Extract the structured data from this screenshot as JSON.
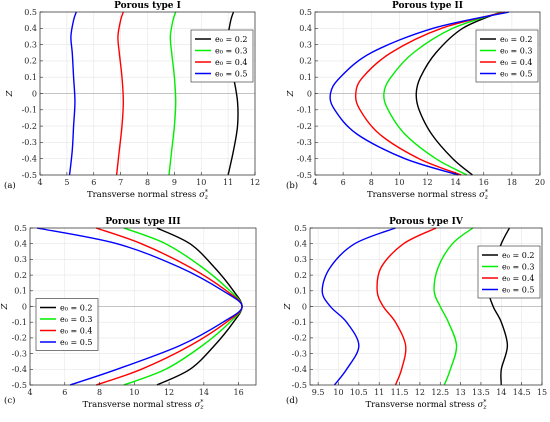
{
  "figure": {
    "background": "#ffffff",
    "series_colors": [
      "#000000",
      "#00ee00",
      "#ff0000",
      "#0000ff"
    ]
  },
  "chart_data": [
    {
      "type": "line",
      "panel_label": "(a)",
      "title": "Porous type I",
      "xlabel": "Transverse normal stress σ_z^*",
      "ylabel": "Z",
      "xlim": [
        4,
        12
      ],
      "ylim": [
        -0.5,
        0.5
      ],
      "xticks": [
        4,
        5,
        6,
        7,
        8,
        9,
        10,
        11,
        12
      ],
      "yticks": [
        -0.5,
        -0.4,
        -0.3,
        -0.2,
        -0.1,
        0,
        0.1,
        0.2,
        0.3,
        0.4,
        0.5
      ],
      "grid": true,
      "legend_position": "top-right",
      "series": [
        {
          "name": "e₀ = 0.2",
          "color": "#000000",
          "x": [
            11.0,
            11.2,
            11.35,
            11.35,
            11.2,
            11.0,
            11.0,
            11.1,
            11.2
          ],
          "y": [
            -0.5,
            -0.35,
            -0.2,
            -0.05,
            0.1,
            0.25,
            0.35,
            0.45,
            0.5
          ]
        },
        {
          "name": "e₀ = 0.3",
          "color": "#00ee00",
          "x": [
            8.8,
            8.9,
            9.0,
            9.05,
            9.0,
            8.9,
            8.85,
            8.95,
            9.05
          ],
          "y": [
            -0.5,
            -0.35,
            -0.2,
            -0.05,
            0.1,
            0.25,
            0.35,
            0.45,
            0.5
          ]
        },
        {
          "name": "e₀ = 0.4",
          "color": "#ff0000",
          "x": [
            6.85,
            6.95,
            7.05,
            7.1,
            7.05,
            6.95,
            6.9,
            7.0,
            7.1
          ],
          "y": [
            -0.5,
            -0.35,
            -0.2,
            -0.05,
            0.1,
            0.25,
            0.35,
            0.45,
            0.5
          ]
        },
        {
          "name": "e₀ = 0.5",
          "color": "#0000ff",
          "x": [
            5.1,
            5.2,
            5.25,
            5.3,
            5.25,
            5.2,
            5.15,
            5.25,
            5.35
          ],
          "y": [
            -0.5,
            -0.35,
            -0.2,
            -0.05,
            0.1,
            0.25,
            0.35,
            0.45,
            0.5
          ]
        }
      ]
    },
    {
      "type": "line",
      "panel_label": "(b)",
      "title": "Porous type II",
      "xlabel": "Transverse normal stress σ_z^*",
      "ylabel": "Z",
      "xlim": [
        4,
        20
      ],
      "ylim": [
        -0.5,
        0.5
      ],
      "xticks": [
        4,
        6,
        8,
        10,
        12,
        14,
        16,
        18,
        20
      ],
      "yticks": [
        -0.5,
        -0.4,
        -0.3,
        -0.2,
        -0.1,
        0,
        0.1,
        0.2,
        0.3,
        0.4,
        0.5
      ],
      "grid": true,
      "legend_position": "top-right",
      "series": [
        {
          "name": "e₀ = 0.2",
          "color": "#000000",
          "x": [
            15.2,
            13.8,
            12.3,
            11.4,
            11.2,
            11.5,
            12.6,
            14.5,
            17.2
          ],
          "y": [
            -0.5,
            -0.4,
            -0.25,
            -0.1,
            0.0,
            0.1,
            0.25,
            0.4,
            0.5
          ]
        },
        {
          "name": "e₀ = 0.3",
          "color": "#00ee00",
          "x": [
            14.8,
            12.6,
            10.4,
            9.2,
            8.9,
            9.4,
            11.0,
            13.8,
            17.3
          ],
          "y": [
            -0.5,
            -0.4,
            -0.25,
            -0.1,
            0.0,
            0.1,
            0.25,
            0.4,
            0.5
          ]
        },
        {
          "name": "e₀ = 0.4",
          "color": "#ff0000",
          "x": [
            14.4,
            11.4,
            8.6,
            7.2,
            6.9,
            7.4,
            9.4,
            13.0,
            17.5
          ],
          "y": [
            -0.5,
            -0.4,
            -0.25,
            -0.1,
            0.0,
            0.1,
            0.25,
            0.4,
            0.5
          ]
        },
        {
          "name": "e₀ = 0.5",
          "color": "#0000ff",
          "x": [
            14.2,
            10.4,
            7.0,
            5.4,
            5.1,
            5.8,
            8.0,
            12.4,
            17.8
          ],
          "y": [
            -0.5,
            -0.4,
            -0.25,
            -0.1,
            0.0,
            0.1,
            0.25,
            0.4,
            0.5
          ]
        }
      ]
    },
    {
      "type": "line",
      "panel_label": "(c)",
      "title": "Porous type III",
      "xlabel": "Transverse normal stress σ_z^*",
      "ylabel": "Z",
      "xlim": [
        4,
        17
      ],
      "ylim": [
        -0.5,
        0.5
      ],
      "xticks": [
        4,
        6,
        8,
        10,
        12,
        14,
        16
      ],
      "yticks": [
        -0.5,
        -0.4,
        -0.3,
        -0.2,
        -0.1,
        0,
        0.1,
        0.2,
        0.3,
        0.4,
        0.5
      ],
      "grid": true,
      "legend_position": "center-left",
      "series": [
        {
          "name": "e₀ = 0.2",
          "color": "#000000",
          "x": [
            11.3,
            13.2,
            14.6,
            15.7,
            16.2,
            15.7,
            14.6,
            13.2,
            11.3
          ],
          "y": [
            -0.5,
            -0.4,
            -0.25,
            -0.1,
            0.0,
            0.1,
            0.25,
            0.4,
            0.5
          ]
        },
        {
          "name": "e₀ = 0.3",
          "color": "#00ee00",
          "x": [
            9.4,
            11.8,
            13.9,
            15.5,
            16.2,
            15.5,
            13.9,
            11.8,
            9.4
          ],
          "y": [
            -0.5,
            -0.4,
            -0.25,
            -0.1,
            0.0,
            0.1,
            0.25,
            0.4,
            0.5
          ]
        },
        {
          "name": "e₀ = 0.4",
          "color": "#ff0000",
          "x": [
            7.8,
            10.4,
            13.2,
            15.3,
            16.2,
            15.3,
            13.2,
            10.4,
            7.8
          ],
          "y": [
            -0.5,
            -0.4,
            -0.25,
            -0.1,
            0.0,
            0.1,
            0.25,
            0.4,
            0.5
          ]
        },
        {
          "name": "e₀ = 0.5",
          "color": "#0000ff",
          "x": [
            6.3,
            9.0,
            12.6,
            15.1,
            16.2,
            15.1,
            12.6,
            9.0,
            4.4
          ],
          "y": [
            -0.5,
            -0.4,
            -0.25,
            -0.1,
            0.0,
            0.1,
            0.25,
            0.4,
            0.5
          ]
        }
      ]
    },
    {
      "type": "line",
      "panel_label": "(d)",
      "title": "Porous type IV",
      "xlabel": "Transverse normal stress σ_z^*",
      "ylabel": "Z",
      "xlim": [
        9.3,
        15
      ],
      "ylim": [
        -0.5,
        0.5
      ],
      "xticks": [
        9.5,
        10,
        10.5,
        11,
        11.5,
        12,
        12.5,
        13,
        13.5,
        14,
        14.5,
        15
      ],
      "yticks": [
        -0.5,
        -0.4,
        -0.3,
        -0.2,
        -0.1,
        0,
        0.1,
        0.2,
        0.3,
        0.4,
        0.5
      ],
      "grid": true,
      "legend_position": "top-right",
      "series": [
        {
          "name": "e₀ = 0.2",
          "color": "#000000",
          "x": [
            14.0,
            14.0,
            14.15,
            14.0,
            13.8,
            13.7,
            13.8,
            14.0,
            14.2
          ],
          "y": [
            -0.5,
            -0.4,
            -0.25,
            -0.1,
            0.0,
            0.1,
            0.25,
            0.4,
            0.5
          ]
        },
        {
          "name": "e₀ = 0.3",
          "color": "#00ee00",
          "x": [
            12.6,
            12.75,
            12.9,
            12.7,
            12.5,
            12.35,
            12.45,
            12.8,
            13.3
          ],
          "y": [
            -0.5,
            -0.4,
            -0.25,
            -0.1,
            0.0,
            0.1,
            0.25,
            0.4,
            0.5
          ]
        },
        {
          "name": "e₀ = 0.4",
          "color": "#ff0000",
          "x": [
            11.4,
            11.55,
            11.65,
            11.4,
            11.1,
            10.95,
            11.05,
            11.6,
            12.4
          ],
          "y": [
            -0.5,
            -0.4,
            -0.25,
            -0.1,
            0.0,
            0.1,
            0.25,
            0.4,
            0.5
          ]
        },
        {
          "name": "e₀ = 0.5",
          "color": "#0000ff",
          "x": [
            9.9,
            10.2,
            10.5,
            10.2,
            9.8,
            9.6,
            9.8,
            10.4,
            11.4
          ],
          "y": [
            -0.5,
            -0.4,
            -0.25,
            -0.1,
            0.0,
            0.1,
            0.25,
            0.4,
            0.5
          ]
        }
      ]
    }
  ]
}
